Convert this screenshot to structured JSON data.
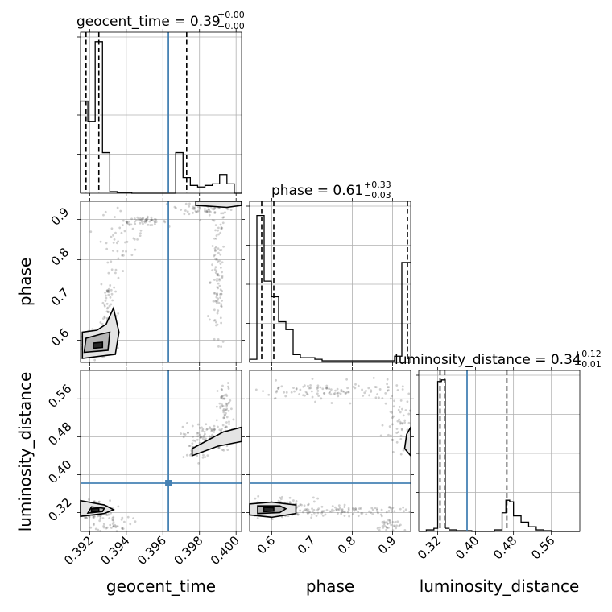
{
  "chart_data": {
    "type": "corner",
    "parameters": [
      "geocent_time",
      "phase",
      "luminosity_distance"
    ],
    "titles": {
      "geocent_time": {
        "name": "geocent_time",
        "median": "0.39",
        "plus": "+0.00",
        "minus": "−0.00"
      },
      "phase": {
        "name": "phase",
        "median": "0.61",
        "plus": "+0.33",
        "minus": "−0.03"
      },
      "luminosity_distance": {
        "name": "luminosity_distance",
        "median": "0.34",
        "plus": "+0.12",
        "minus": "−0.01"
      }
    },
    "axis_labels": {
      "geocent_time": "geocent_time",
      "phase": "phase",
      "luminosity_distance": "luminosity_distance"
    },
    "ranges": {
      "geocent_time": [
        0.3915,
        0.4003
      ],
      "phase": [
        0.545,
        0.945
      ],
      "luminosity_distance": [
        0.28,
        0.62
      ]
    },
    "ticks": {
      "geocent_time": [
        "0.392",
        "0.394",
        "0.396",
        "0.398",
        "0.400"
      ],
      "phase": [
        "0.6",
        "0.7",
        "0.8",
        "0.9"
      ],
      "luminosity_distance": [
        "0.32",
        "0.40",
        "0.48",
        "0.56"
      ]
    },
    "truths": {
      "geocent_time": 0.3963,
      "phase": null,
      "luminosity_distance": 0.382
    },
    "quantiles": {
      "geocent_time": [
        0.3918,
        0.3925,
        0.3973
      ],
      "phase": [
        0.575,
        0.605,
        0.937
      ],
      "luminosity_distance": [
        0.325,
        0.335,
        0.466
      ]
    },
    "histograms": {
      "geocent_time": {
        "bins": [
          0.3915,
          0.3919,
          0.3923,
          0.3927,
          0.3931,
          0.3935,
          0.3939,
          0.3943,
          0.3947,
          0.3951,
          0.3955,
          0.3959,
          0.3963,
          0.3967,
          0.3971,
          0.3975,
          0.3979,
          0.3983,
          0.3987,
          0.3991,
          0.3995,
          0.3999,
          0.4003
        ],
        "counts": [
          0.59,
          0.46,
          0.97,
          0.26,
          0.01,
          0.005,
          0.005,
          0,
          0,
          0,
          0,
          0,
          0,
          0.26,
          0.1,
          0.05,
          0.04,
          0.05,
          0.06,
          0.12,
          0.06,
          0
        ]
      },
      "phase": {
        "bins": [
          0.545,
          0.563,
          0.581,
          0.599,
          0.617,
          0.635,
          0.653,
          0.671,
          0.689,
          0.707,
          0.725,
          0.743,
          0.761,
          0.779,
          0.797,
          0.815,
          0.833,
          0.851,
          0.869,
          0.887,
          0.905,
          0.923,
          0.945
        ],
        "counts": [
          0.02,
          0.94,
          0.52,
          0.42,
          0.26,
          0.21,
          0.05,
          0.03,
          0.03,
          0.02,
          0.01,
          0.01,
          0.01,
          0.01,
          0.01,
          0.01,
          0.01,
          0.01,
          0.01,
          0.01,
          0.04,
          0.64
        ]
      },
      "luminosity_distance": {
        "bins": [
          0.28,
          0.296,
          0.312,
          0.32,
          0.328,
          0.336,
          0.344,
          0.36,
          0.376,
          0.392,
          0.408,
          0.424,
          0.44,
          0.456,
          0.464,
          0.472,
          0.48,
          0.496,
          0.512,
          0.528,
          0.544,
          0.56,
          0.62
        ],
        "counts": [
          0,
          0.01,
          0.02,
          0.96,
          0.97,
          0.02,
          0.01,
          0.005,
          0.005,
          0,
          0,
          0,
          0.01,
          0.12,
          0.2,
          0.19,
          0.1,
          0.06,
          0.03,
          0.01,
          0.005,
          0
        ]
      }
    },
    "grid": true,
    "truth_color": "#4682b4",
    "contour_levels": 3
  }
}
